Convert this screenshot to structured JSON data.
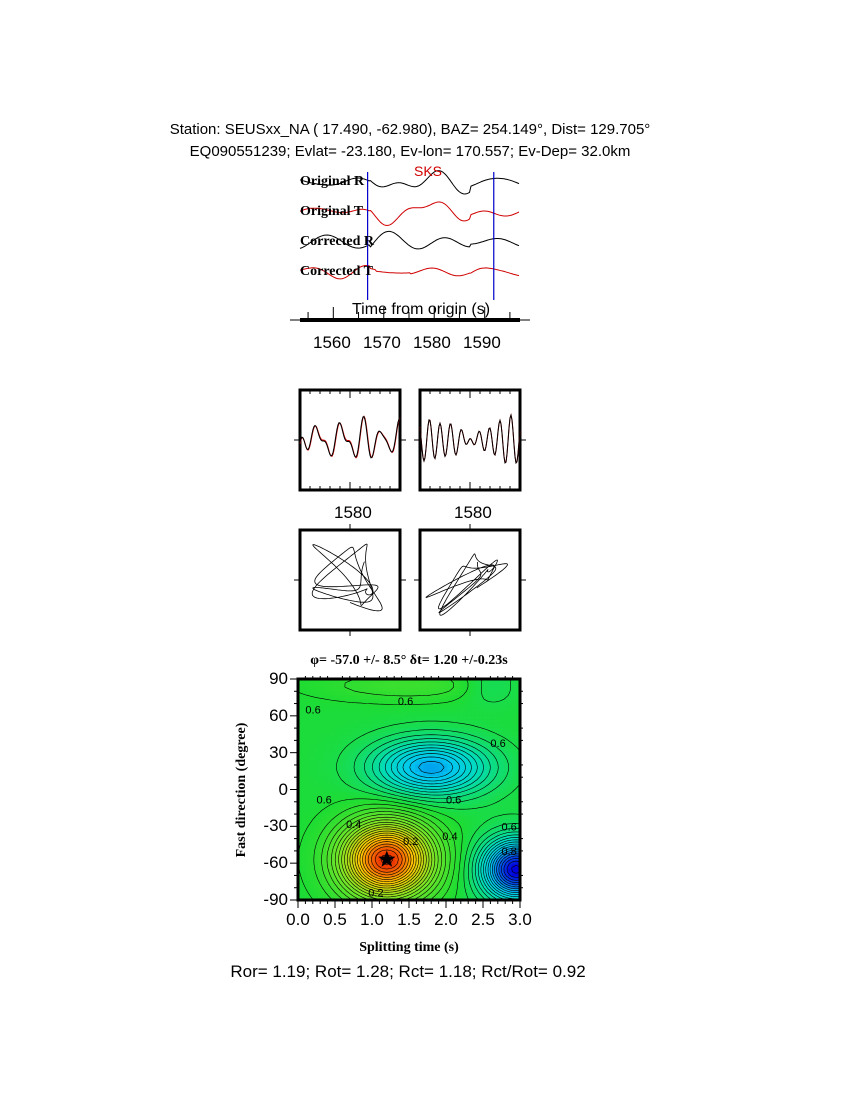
{
  "header": {
    "line1": "Station: SEUSxx_NA (  17.490,  -62.980), BAZ=  254.149°, Dist=  129.705°",
    "line2": "EQ090551239; Evlat= -23.180, Ev-lon= 170.557; Ev-Dep= 32.0km"
  },
  "chart_data": [
    {
      "type": "line",
      "title": "Seismograms",
      "phase_label": "SKS",
      "traces": [
        "Original R",
        "Original T",
        "Corrected R",
        "Corrected T"
      ],
      "trace_colors": [
        "#000000",
        "#d00000",
        "#000000",
        "#d00000"
      ],
      "xlabel": "Time from origin (s)",
      "xticks": [
        "1560",
        "1570",
        "1580",
        "1590"
      ],
      "xlim": [
        1553.4,
        1597
      ],
      "window_markers_s": [
        1566.8,
        1591.8
      ],
      "marker_color": "#0000cc"
    },
    {
      "type": "line",
      "title": "Waveform comparison",
      "panels": [
        {
          "xtick": "1580"
        },
        {
          "xtick": "1580"
        }
      ]
    },
    {
      "type": "line",
      "title": "Particle motion",
      "panels": [
        "original",
        "corrected"
      ]
    },
    {
      "type": "heatmap",
      "title": "φ= -57.0 +/- 8.5° δt= 1.20 +/-0.23s",
      "xlabel": "Splitting time (s)",
      "ylabel": "Fast direction (degree)",
      "xlim": [
        0,
        3
      ],
      "ylim": [
        -90,
        90
      ],
      "xticks": [
        "0.0",
        "0.5",
        "1.0",
        "1.5",
        "2.0",
        "2.5",
        "3.0"
      ],
      "yticks": [
        "90",
        "60",
        "30",
        "0",
        "-30",
        "-60",
        "-90"
      ],
      "best_fit": {
        "dt": 1.2,
        "phi": -57.0
      },
      "contour_labels": [
        {
          "text": "0.6",
          "dt": 0.1,
          "phi": 65
        },
        {
          "text": "0.6",
          "dt": 1.35,
          "phi": 72
        },
        {
          "text": "0.6",
          "dt": 2.6,
          "phi": 38
        },
        {
          "text": "0.6",
          "dt": 0.25,
          "phi": -8
        },
        {
          "text": "0.6",
          "dt": 2.0,
          "phi": -8
        },
        {
          "text": "0.4",
          "dt": 0.65,
          "phi": -28
        },
        {
          "text": "0.2",
          "dt": 1.42,
          "phi": -42
        },
        {
          "text": "0.4",
          "dt": 1.95,
          "phi": -38
        },
        {
          "text": "0.6",
          "dt": 2.75,
          "phi": -30
        },
        {
          "text": "0.8",
          "dt": 2.75,
          "phi": -50
        },
        {
          "text": "0.2",
          "dt": 0.95,
          "phi": -84
        }
      ]
    }
  ],
  "footer": "Ror= 1.19; Rot= 1.28; Rct= 1.18; Rct/Rot= 0.92"
}
